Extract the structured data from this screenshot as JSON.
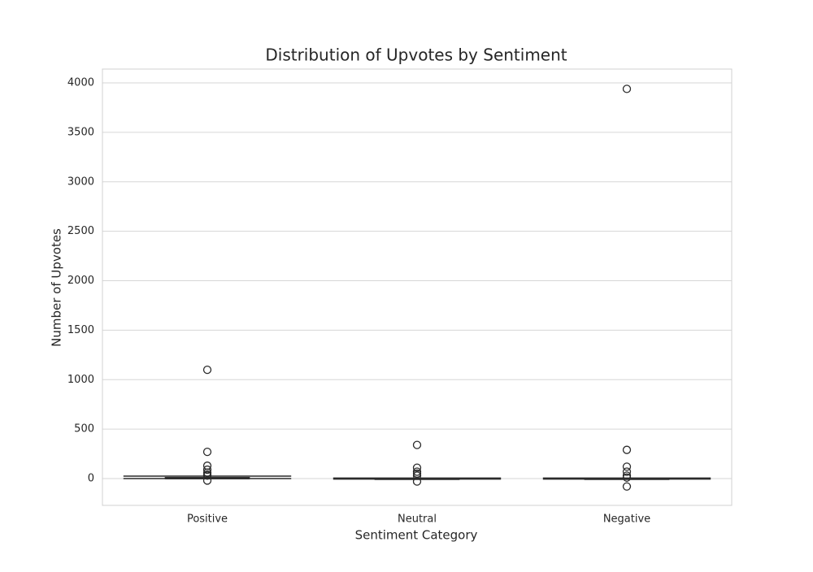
{
  "chart_data": {
    "type": "box",
    "title": "Distribution of Upvotes by Sentiment",
    "x_label": "Sentiment Category",
    "y_label": "Number of Upvotes",
    "categories": [
      "Positive",
      "Neutral",
      "Negative"
    ],
    "boxes": [
      {
        "whislo": 0,
        "q1": 0,
        "median": 1,
        "q3": 10,
        "whishi": 25,
        "fliers": [
          1100,
          270,
          130,
          90,
          60,
          40,
          30,
          -20
        ]
      },
      {
        "whislo": -5,
        "q1": -5,
        "median": 0,
        "q3": 0,
        "whishi": 5,
        "fliers": [
          340,
          110,
          70,
          50,
          30,
          -30
        ]
      },
      {
        "whislo": -5,
        "q1": -5,
        "median": 0,
        "q3": 0,
        "whishi": 5,
        "fliers": [
          3940,
          290,
          120,
          70,
          30,
          10,
          -80
        ]
      }
    ],
    "color": "#2b2b2b",
    "ylim": [
      -271,
      4140
    ],
    "yticks": [
      0,
      500,
      1000,
      1500,
      2000,
      2500,
      3000,
      3500,
      4000
    ],
    "grid": true
  }
}
